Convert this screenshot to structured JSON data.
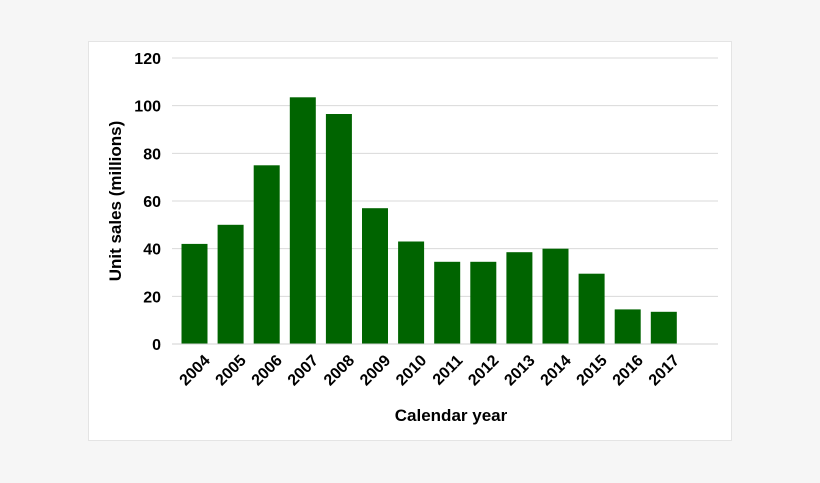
{
  "chart_data": {
    "type": "bar",
    "categories": [
      "2004",
      "2005",
      "2006",
      "2007",
      "2008",
      "2009",
      "2010",
      "2011",
      "2012",
      "2013",
      "2014",
      "2015",
      "2016",
      "2017"
    ],
    "values": [
      42,
      50,
      75,
      103.5,
      96.5,
      57,
      43,
      34.5,
      34.5,
      38.5,
      40,
      29.5,
      14.5,
      13.5
    ],
    "title": "",
    "xlabel": "Calendar year",
    "ylabel": "Unit sales (millions)",
    "ylim": [
      0,
      120
    ],
    "yticks": [
      0,
      20,
      40,
      60,
      80,
      100,
      120
    ],
    "grid": true,
    "legend": "none",
    "colors": {
      "bar": "#006400",
      "grid": "#d9d9d9",
      "background": "#ffffff",
      "page_background": "#f6f6f6"
    }
  }
}
